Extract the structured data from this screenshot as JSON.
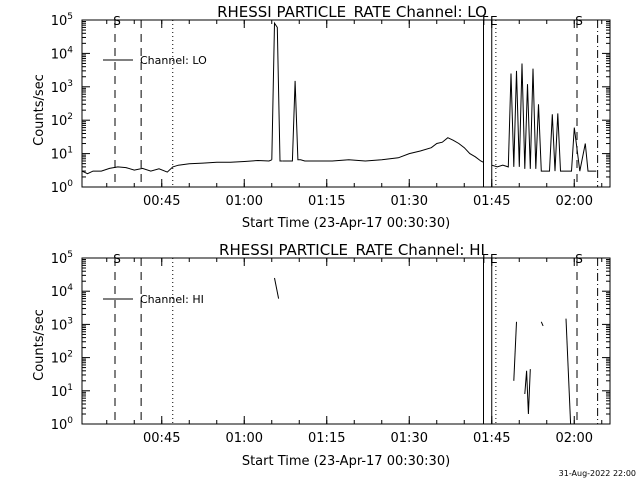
{
  "footer": {
    "timestamp": "31-Aug-2022 22:00"
  },
  "chart_data": [
    {
      "type": "line",
      "title": "RHESSI PARTICLE_RATE Channel: LO",
      "xlabel": "Start Time (23-Apr-17 00:30:30)",
      "ylabel": "Counts/sec",
      "yscale": "log",
      "xlim": [
        "00:30:30",
        "02:06:30"
      ],
      "ylim": [
        1,
        100000
      ],
      "x_ticks": [
        "00:45",
        "01:00",
        "01:15",
        "01:30",
        "01:45",
        "02:00"
      ],
      "y_ticks": [
        "10^0",
        "10^1",
        "10^2",
        "10^3",
        "10^4",
        "10^5"
      ],
      "legend": {
        "label": "Channel: LO",
        "placement": "top-left"
      },
      "markers": [
        {
          "label": "S",
          "style": "dashed",
          "x": "00:36:30"
        },
        {
          "label": "",
          "style": "dashed",
          "x": "00:41:15"
        },
        {
          "label": "",
          "style": "dotted",
          "x": "00:47:00"
        },
        {
          "label": "F",
          "style": "solid",
          "x": "01:43:30"
        },
        {
          "label": "E",
          "style": "solid",
          "x": "01:45:00"
        },
        {
          "label": "",
          "style": "dotted",
          "x": "01:45:45"
        },
        {
          "label": "S",
          "style": "dashed",
          "x": "02:00:30"
        },
        {
          "label": "",
          "style": "dashdot",
          "x": "02:04:15"
        }
      ],
      "segments": [
        {
          "x": [
            "00:30:30",
            "00:31:30",
            "00:32:30",
            "00:34:00",
            "00:35:30",
            "00:37:00",
            "00:38:30",
            "00:40:00",
            "00:41:30",
            "00:43:00",
            "00:44:30",
            "00:46:00",
            "00:47:00",
            "00:48:00",
            "00:50:00",
            "00:52:30",
            "00:55:00",
            "00:57:30",
            "01:00:00",
            "01:02:30",
            "01:04:30",
            "01:05:00"
          ],
          "y": [
            3.0,
            2.5,
            3.0,
            3.0,
            3.6,
            4.0,
            3.8,
            3.2,
            3.6,
            3.0,
            3.5,
            2.8,
            4.0,
            4.5,
            5.0,
            5.2,
            5.5,
            5.5,
            5.8,
            6.2,
            6.0,
            6.5
          ]
        },
        {
          "x": [
            "01:05:00",
            "01:05:30",
            "01:06:00",
            "01:06:30",
            "01:07:00"
          ],
          "y": [
            6.5,
            80000,
            60000,
            6.0,
            6.0
          ]
        },
        {
          "x": [
            "01:07:00",
            "01:08:00",
            "01:08:45",
            "01:09:15",
            "01:09:45",
            "01:10:15",
            "01:11:00",
            "01:13:00",
            "01:16:00",
            "01:19:00",
            "01:22:00",
            "01:25:00",
            "01:28:00",
            "01:30:00",
            "01:32:00",
            "01:34:00",
            "01:35:00",
            "01:36:00",
            "01:37:00",
            "01:38:00",
            "01:39:00",
            "01:40:00",
            "01:41:00",
            "01:42:00",
            "01:43:00",
            "01:43:30"
          ],
          "y": [
            6.0,
            6.0,
            6.0,
            1500,
            6.5,
            6.5,
            6.0,
            6.0,
            6.0,
            6.5,
            6.0,
            6.5,
            7.5,
            10,
            12,
            15,
            20,
            22,
            30,
            25,
            20,
            15,
            10,
            8,
            6,
            5.5
          ]
        },
        {
          "x": [
            "01:45:00",
            "01:46:00",
            "01:47:00",
            "01:48:00",
            "01:48:30",
            "01:49:00",
            "01:49:30",
            "01:50:00",
            "01:50:30",
            "01:51:00",
            "01:51:30",
            "01:52:00",
            "01:52:30",
            "01:53:00",
            "01:53:30",
            "01:54:00",
            "01:54:30",
            "01:55:00",
            "01:55:30",
            "01:56:00",
            "01:56:30",
            "01:57:00",
            "01:57:30",
            "01:58:00",
            "01:58:30",
            "01:59:00",
            "01:59:30",
            "02:00:00",
            "02:01:00",
            "02:02:00",
            "02:02:30",
            "02:03:00",
            "02:04:00"
          ],
          "y": [
            4.5,
            4.0,
            4.5,
            4.0,
            2500,
            4.0,
            3000,
            4.0,
            5000,
            3.5,
            1200,
            3.5,
            3500,
            3.5,
            300,
            3.0,
            3.0,
            3.0,
            3.0,
            150,
            3.0,
            160,
            3.0,
            3.0,
            3.0,
            3.0,
            3.0,
            60,
            3.0,
            20,
            3.0,
            3.0,
            3.0
          ]
        }
      ]
    },
    {
      "type": "line",
      "title": "RHESSI PARTICLE_RATE Channel: HI",
      "xlabel": "Start Time (23-Apr-17 00:30:30)",
      "ylabel": "Counts/sec",
      "yscale": "log",
      "xlim": [
        "00:30:30",
        "02:06:30"
      ],
      "ylim": [
        1,
        100000
      ],
      "x_ticks": [
        "00:45",
        "01:00",
        "01:15",
        "01:30",
        "01:45",
        "02:00"
      ],
      "y_ticks": [
        "10^0",
        "10^1",
        "10^2",
        "10^3",
        "10^4",
        "10^5"
      ],
      "legend": {
        "label": "Channel: HI",
        "placement": "top-left"
      },
      "markers": [
        {
          "label": "S",
          "style": "dashed",
          "x": "00:36:30"
        },
        {
          "label": "",
          "style": "dashed",
          "x": "00:41:15"
        },
        {
          "label": "",
          "style": "dotted",
          "x": "00:47:00"
        },
        {
          "label": "F",
          "style": "solid",
          "x": "01:43:30"
        },
        {
          "label": "E",
          "style": "solid",
          "x": "01:45:00"
        },
        {
          "label": "",
          "style": "dotted",
          "x": "01:45:45"
        },
        {
          "label": "S",
          "style": "dashed",
          "x": "02:00:30"
        },
        {
          "label": "",
          "style": "dashdot",
          "x": "02:04:15"
        }
      ],
      "segments": [
        {
          "x": [
            "01:05:30",
            "01:06:15"
          ],
          "y": [
            25000,
            6000
          ]
        },
        {
          "x": [
            "01:49:00",
            "01:49:30"
          ],
          "y": [
            20,
            1200
          ]
        },
        {
          "x": [
            "01:51:00",
            "01:51:20",
            "01:51:40",
            "01:52:00"
          ],
          "y": [
            8,
            40,
            2,
            45
          ]
        },
        {
          "x": [
            "01:54:00",
            "01:54:20"
          ],
          "y": [
            1200,
            900
          ]
        },
        {
          "x": [
            "01:58:30",
            "01:59:20"
          ],
          "y": [
            1500,
            1
          ]
        }
      ]
    }
  ]
}
